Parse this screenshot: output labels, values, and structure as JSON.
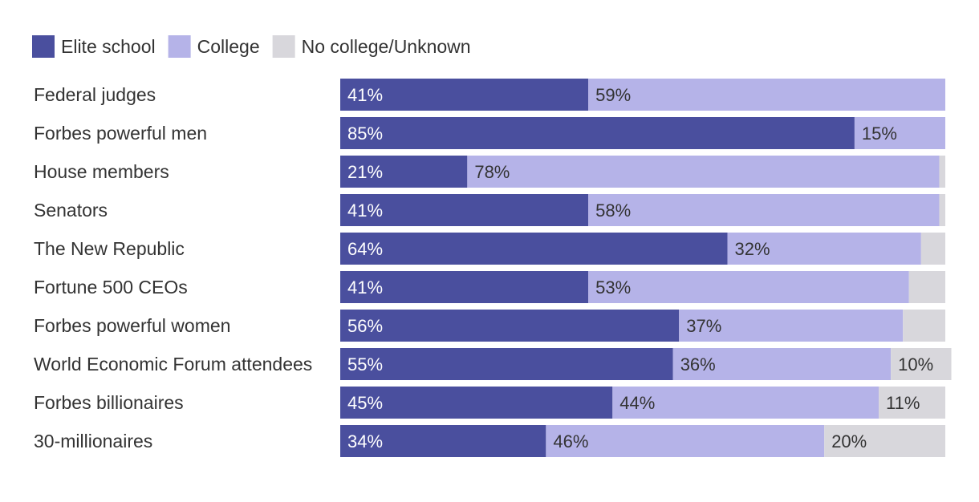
{
  "chart_data": {
    "type": "bar",
    "orientation": "horizontal",
    "stacked": true,
    "legend_position": "top-left",
    "xlim": [
      0,
      100
    ],
    "categories": [
      "Federal judges",
      "Forbes powerful men",
      "House members",
      "Senators",
      "The New Republic",
      "Fortune 500 CEOs",
      "Forbes powerful women",
      "World Economic Forum attendees",
      "Forbes billionaires",
      "30-millionaires"
    ],
    "series": [
      {
        "name": "Elite school",
        "color": "#4a4f9e",
        "label_color": "#ffffff",
        "values": [
          41,
          85,
          21,
          41,
          64,
          41,
          56,
          55,
          45,
          34
        ],
        "labels": [
          "41%",
          "85%",
          "21%",
          "41%",
          "64%",
          "41%",
          "56%",
          "55%",
          "45%",
          "34%"
        ]
      },
      {
        "name": "College",
        "color": "#b5b3e8",
        "label_color": "#333333",
        "values": [
          59,
          15,
          78,
          58,
          32,
          53,
          37,
          36,
          44,
          46
        ],
        "labels": [
          "59%",
          "15%",
          "78%",
          "58%",
          "32%",
          "53%",
          "37%",
          "36%",
          "44%",
          "46%"
        ]
      },
      {
        "name": "No college/Unknown",
        "color": "#d8d7dc",
        "label_color": "#333333",
        "values": [
          0,
          0,
          1,
          1,
          4,
          6,
          7,
          10,
          11,
          20
        ],
        "labels": [
          "",
          "",
          "",
          "",
          "",
          "",
          "",
          "10%",
          "11%",
          "20%"
        ]
      }
    ]
  }
}
